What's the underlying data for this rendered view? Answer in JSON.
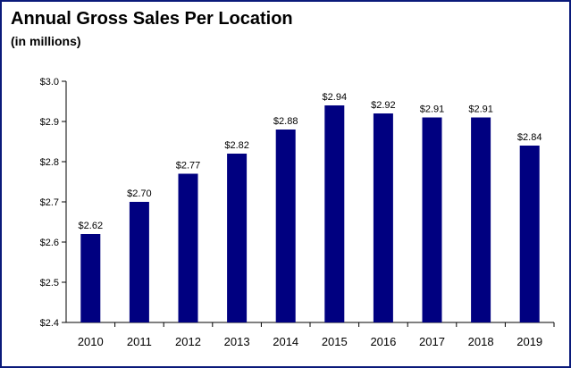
{
  "header": {
    "title": "Annual Gross Sales Per Location",
    "subtitle": "(in millions)"
  },
  "chart_data": {
    "type": "bar",
    "title": "Annual Gross Sales Per Location",
    "subtitle": "(in millions)",
    "xlabel": "",
    "ylabel": "",
    "categories": [
      "2010",
      "2011",
      "2012",
      "2013",
      "2014",
      "2015",
      "2016",
      "2017",
      "2018",
      "2019"
    ],
    "values": [
      2.62,
      2.7,
      2.77,
      2.82,
      2.88,
      2.94,
      2.92,
      2.91,
      2.91,
      2.84
    ],
    "data_labels": [
      "$2.62",
      "$2.70",
      "$2.77",
      "$2.82",
      "$2.88",
      "$2.94",
      "$2.92",
      "$2.91",
      "$2.91",
      "$2.84"
    ],
    "ylim": [
      2.4,
      3.0
    ],
    "yticks": [
      2.4,
      2.5,
      2.6,
      2.7,
      2.8,
      2.9,
      3.0
    ],
    "ytick_labels": [
      "$2.4",
      "$2.5",
      "$2.6",
      "$2.7",
      "$2.8",
      "$2.9",
      "$3.0"
    ],
    "grid": false,
    "legend": "none",
    "bar_color": "#000080",
    "border_color": "#0a1a7a"
  }
}
